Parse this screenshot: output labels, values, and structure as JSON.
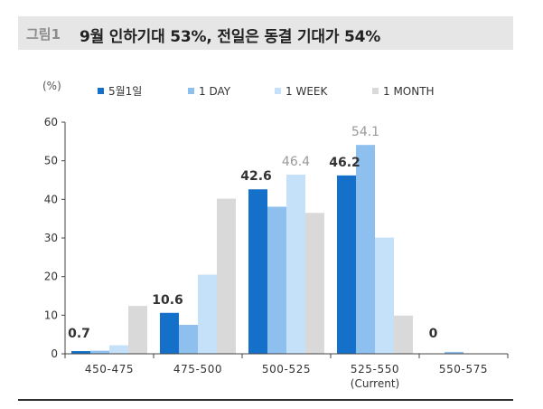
{
  "header": {
    "figure_label": "그림1",
    "title": "9월 인하기대 53%, 전일은 동결 기대가 54%"
  },
  "chart_data": {
    "type": "bar",
    "unit_label": "(%)",
    "categories": [
      "450-475",
      "475-500",
      "500-525",
      "525-550",
      "550-575"
    ],
    "category_sublabels": [
      "",
      "",
      "",
      "(Current)",
      ""
    ],
    "ylim": [
      0,
      60
    ],
    "yticks": [
      0,
      10,
      20,
      30,
      40,
      50,
      60
    ],
    "legend_position": "top",
    "series": [
      {
        "name": "5월1일",
        "color": "#1470c8",
        "values": [
          0.7,
          10.6,
          42.6,
          46.2,
          0
        ]
      },
      {
        "name": "1 DAY",
        "color": "#8ec0ef",
        "values": [
          0.8,
          7.5,
          38.1,
          54.1,
          0.5
        ]
      },
      {
        "name": "1 WEEK",
        "color": "#c5e1fa",
        "values": [
          2.2,
          20.5,
          46.4,
          30.1,
          0
        ]
      },
      {
        "name": "1 MONTH",
        "color": "#d9d9d9",
        "values": [
          12.4,
          40.2,
          36.5,
          9.9,
          0
        ]
      }
    ],
    "data_labels": [
      {
        "series": 0,
        "index": 0,
        "text": "0.7",
        "bold": true
      },
      {
        "series": 0,
        "index": 1,
        "text": "10.6",
        "bold": true
      },
      {
        "series": 0,
        "index": 2,
        "text": "42.6",
        "bold": true
      },
      {
        "series": 2,
        "index": 2,
        "text": "46.4",
        "bold": false
      },
      {
        "series": 0,
        "index": 3,
        "text": "46.2",
        "bold": true
      },
      {
        "series": 1,
        "index": 3,
        "text": "54.1",
        "bold": false
      },
      {
        "series": 0,
        "index": 4,
        "text": "0",
        "bold": true
      }
    ]
  }
}
